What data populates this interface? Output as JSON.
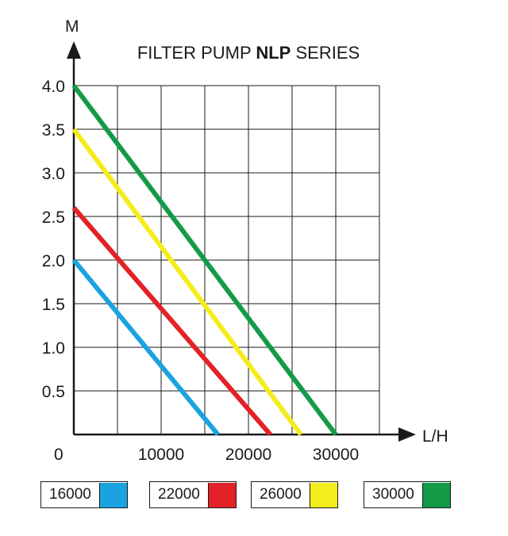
{
  "chart_data": {
    "type": "line",
    "title_parts": [
      "FILTER PUMP ",
      "NLP",
      " SERIES"
    ],
    "ylabel": "M",
    "xlabel": "L/H",
    "x_origin_label": "0",
    "x_ticks": [
      10000,
      20000,
      30000
    ],
    "x_tick_labels": [
      "10000",
      "20000",
      "30000"
    ],
    "y_ticks": [
      0.5,
      1.0,
      1.5,
      2.0,
      2.5,
      3.0,
      3.5,
      4.0
    ],
    "y_tick_labels": [
      "0.5",
      "1.0",
      "1.5",
      "2.0",
      "2.5",
      "3.0",
      "3.5",
      "4.0"
    ],
    "xlim": [
      0,
      35000
    ],
    "ylim": [
      0,
      4.0
    ],
    "grid": true,
    "series": [
      {
        "name": "16000",
        "color": "#1aa3e0",
        "points": [
          [
            0,
            2.0
          ],
          [
            16500,
            0
          ]
        ]
      },
      {
        "name": "22000",
        "color": "#e32227",
        "points": [
          [
            0,
            2.6
          ],
          [
            22500,
            0
          ]
        ]
      },
      {
        "name": "26000",
        "color": "#f5ec1c",
        "points": [
          [
            0,
            3.5
          ],
          [
            26000,
            0
          ]
        ]
      },
      {
        "name": "30000",
        "color": "#139b48",
        "points": [
          [
            0,
            4.0
          ],
          [
            30000,
            0
          ]
        ]
      }
    ]
  }
}
